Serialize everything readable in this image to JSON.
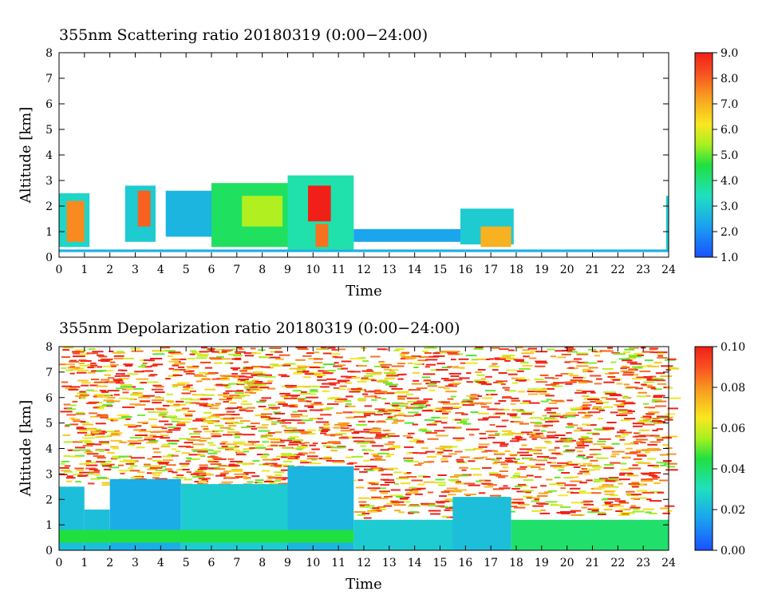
{
  "chart_data": [
    {
      "type": "heatmap",
      "title": "355nm Scattering ratio  20180319 (0:00−24:00)",
      "xlabel": "Time",
      "ylabel": "Altitude [km]",
      "xlim": [
        0,
        24
      ],
      "ylim": [
        0,
        8
      ],
      "x_ticks": [
        "0",
        "1",
        "2",
        "3",
        "4",
        "5",
        "6",
        "7",
        "8",
        "9",
        "10",
        "11",
        "12",
        "13",
        "14",
        "15",
        "16",
        "17",
        "18",
        "19",
        "20",
        "21",
        "22",
        "23",
        "24"
      ],
      "y_ticks": [
        "0",
        "1",
        "2",
        "3",
        "4",
        "5",
        "6",
        "7",
        "8"
      ],
      "colorbar": {
        "min": 1.0,
        "max": 9.0,
        "tick_labels": [
          "1.0",
          "2.0",
          "3.0",
          "4.0",
          "5.0",
          "6.0",
          "7.0",
          "8.0",
          "9.0"
        ]
      },
      "layers": [
        {
          "t0": 0.0,
          "t1": 1.2,
          "base": 0.4,
          "top": 2.5,
          "level": 3.2
        },
        {
          "t0": 0.3,
          "t1": 1.0,
          "base": 0.6,
          "top": 2.2,
          "level": 7.5
        },
        {
          "t0": 2.6,
          "t1": 3.8,
          "base": 0.6,
          "top": 2.8,
          "level": 3.0
        },
        {
          "t0": 3.1,
          "t1": 3.6,
          "base": 1.2,
          "top": 2.6,
          "level": 8.0
        },
        {
          "t0": 4.2,
          "t1": 6.0,
          "base": 0.8,
          "top": 2.6,
          "level": 2.6
        },
        {
          "t0": 6.0,
          "t1": 9.0,
          "base": 0.4,
          "top": 2.9,
          "level": 4.3
        },
        {
          "t0": 7.2,
          "t1": 8.8,
          "base": 1.2,
          "top": 2.4,
          "level": 5.5
        },
        {
          "t0": 9.0,
          "t1": 11.6,
          "base": 0.3,
          "top": 3.2,
          "level": 3.6
        },
        {
          "t0": 9.8,
          "t1": 10.7,
          "base": 1.4,
          "top": 2.8,
          "level": 9.0
        },
        {
          "t0": 10.1,
          "t1": 10.6,
          "base": 0.4,
          "top": 1.3,
          "level": 7.8
        },
        {
          "t0": 11.6,
          "t1": 15.8,
          "base": 0.6,
          "top": 1.1,
          "level": 2.3
        },
        {
          "t0": 15.8,
          "t1": 17.9,
          "base": 0.5,
          "top": 1.9,
          "level": 3.0
        },
        {
          "t0": 16.6,
          "t1": 17.8,
          "base": 0.4,
          "top": 1.2,
          "level": 7.0
        },
        {
          "t0": 0.0,
          "t1": 24.0,
          "base": 0.2,
          "top": 0.3,
          "level": 2.5
        },
        {
          "t0": 23.9,
          "t1": 24.0,
          "base": 0.3,
          "top": 2.4,
          "level": 3.0
        }
      ]
    },
    {
      "type": "heatmap",
      "title": "355nm Depolarization ratio  20180319 (0:00−24:00)",
      "xlabel": "Time",
      "ylabel": "Altitude [km]",
      "xlim": [
        0,
        24
      ],
      "ylim": [
        0,
        8
      ],
      "x_ticks": [
        "0",
        "1",
        "2",
        "3",
        "4",
        "5",
        "6",
        "7",
        "8",
        "9",
        "10",
        "11",
        "12",
        "13",
        "14",
        "15",
        "16",
        "17",
        "18",
        "19",
        "20",
        "21",
        "22",
        "23",
        "24"
      ],
      "y_ticks": [
        "0",
        "1",
        "2",
        "3",
        "4",
        "5",
        "6",
        "7",
        "8"
      ],
      "colorbar": {
        "min": 0.0,
        "max": 0.1,
        "tick_labels": [
          "0.00",
          "0.02",
          "0.04",
          "0.06",
          "0.08",
          "0.10"
        ]
      },
      "noise_level": 0.09,
      "layers": [
        {
          "t0": 0.0,
          "t1": 1.0,
          "base": 0.0,
          "top": 2.5,
          "level": 0.022
        },
        {
          "t0": 1.0,
          "t1": 2.0,
          "base": 0.0,
          "top": 1.6,
          "level": 0.022
        },
        {
          "t0": 2.0,
          "t1": 4.8,
          "base": 0.0,
          "top": 2.8,
          "level": 0.018
        },
        {
          "t0": 4.8,
          "t1": 9.0,
          "base": 0.0,
          "top": 2.6,
          "level": 0.025
        },
        {
          "t0": 9.0,
          "t1": 11.6,
          "base": 0.0,
          "top": 3.3,
          "level": 0.02
        },
        {
          "t0": 11.6,
          "t1": 15.5,
          "base": 0.0,
          "top": 1.2,
          "level": 0.025
        },
        {
          "t0": 15.5,
          "t1": 17.8,
          "base": 0.0,
          "top": 2.1,
          "level": 0.022
        },
        {
          "t0": 17.8,
          "t1": 24.0,
          "base": 0.0,
          "top": 1.2,
          "level": 0.04
        },
        {
          "t0": 0.0,
          "t1": 11.6,
          "base": 0.3,
          "top": 0.8,
          "level": 0.045
        }
      ]
    }
  ]
}
